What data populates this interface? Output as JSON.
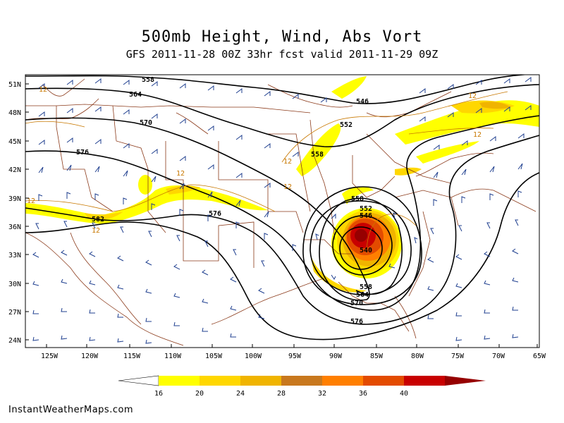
{
  "title": "500mb Height, Wind, Abs Vort",
  "subtitle": "GFS 2011-11-28 00Z 33hr fcst valid 2011-11-29 09Z",
  "credit": "InstantWeatherMaps.com",
  "colors": {
    "coast": "#8b3a1a",
    "state": "#8b3a1a",
    "contour": "#000000",
    "wind": "#1f3f8f",
    "vort_label": "#c87800"
  },
  "lat_labels": [
    "51N",
    "48N",
    "45N",
    "42N",
    "39N",
    "36N",
    "33N",
    "30N",
    "27N",
    "24N"
  ],
  "lon_labels": [
    "125W",
    "120W",
    "115W",
    "110W",
    "105W",
    "100W",
    "95W",
    "90W",
    "85W",
    "80W",
    "75W",
    "70W",
    "65W"
  ],
  "height_labels": [
    "558",
    "564",
    "570",
    "576",
    "582",
    "546",
    "552",
    "558",
    "558",
    "552",
    "546",
    "540",
    "576",
    "558",
    "564",
    "570",
    "576"
  ],
  "vort_labels": [
    "12",
    "12",
    "12",
    "12",
    "12",
    "12",
    "12",
    "12"
  ],
  "colorbar": {
    "ticks": [
      "16",
      "20",
      "24",
      "28",
      "32",
      "36",
      "40"
    ],
    "colors": [
      "#ffff00",
      "#ffd700",
      "#f0b400",
      "#c8781e",
      "#ff7f00",
      "#e34b00",
      "#c80000",
      "#960000"
    ]
  }
}
